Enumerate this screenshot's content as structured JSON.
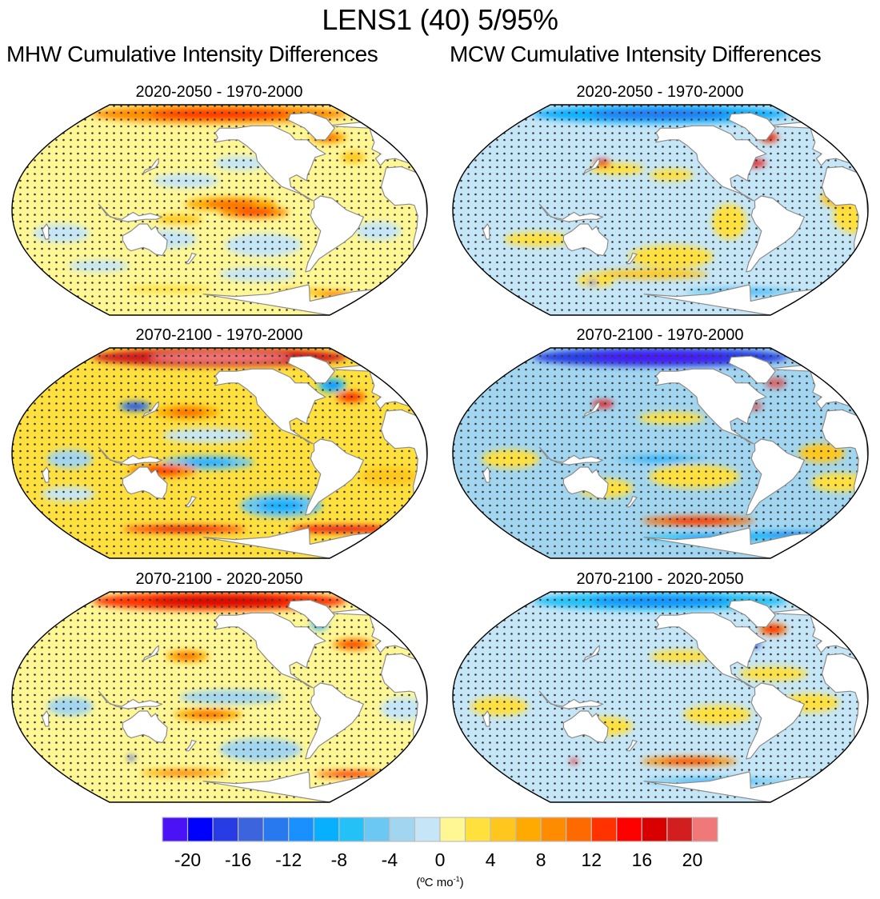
{
  "chart_data": [
    {
      "type": "heatmap",
      "title": "LENS1 (40) 5/95%",
      "column_titles": [
        "MHW Cumulative Intensity Differences",
        "MCW Cumulative Intensity Differences"
      ],
      "projection": "Robinson, Pacific-centered",
      "stippling": "dots mark significance",
      "panels": [
        {
          "id": "mhw-2020-2050-minus-1970-2000",
          "column": "MHW Cumulative Intensity Differences",
          "title": "2020-2050 - 1970-2000",
          "dominant_sign": "positive",
          "dominant_range": [
            0,
            4
          ],
          "notable": [
            "Arctic warm (4 to 12)",
            "equatorial east Pacific warm (4 to 8)",
            "Southern Ocean bands of slight negative (-4 to 0)"
          ]
        },
        {
          "id": "mcw-2020-2050-minus-1970-2000",
          "column": "MCW Cumulative Intensity Differences",
          "title": "2020-2050 - 1970-2000",
          "dominant_sign": "negative",
          "dominant_range": [
            -4,
            0
          ],
          "notable": [
            "Arctic cold (-12 to -4)",
            "Kuroshio and Gulf Stream warm spots (8 to 16)",
            "patchy positive bands (0 to 4)"
          ]
        },
        {
          "id": "mhw-2070-2100-minus-1970-2000",
          "column": "MHW Cumulative Intensity Differences",
          "title": "2070-2100 - 1970-2000",
          "dominant_sign": "positive",
          "dominant_range": [
            0,
            8
          ],
          "notable": [
            "Arctic strongly warm (16 to >20)",
            "Southern Ocean rim warm (8 to 16)",
            "South Pacific negative patch (-8 to -4)"
          ]
        },
        {
          "id": "mcw-2070-2100-minus-1970-2000",
          "column": "MCW Cumulative Intensity Differences",
          "title": "2070-2100 - 1970-2000",
          "dominant_sign": "negative",
          "dominant_range": [
            -6,
            0
          ],
          "notable": [
            "Arctic strongly cold (-20 to -12)",
            "Antarctic margin cold (-12 to -6)",
            "Southern Ocean warm band (4 to 12)"
          ]
        },
        {
          "id": "mhw-2070-2100-minus-2020-2050",
          "column": "MHW Cumulative Intensity Differences",
          "title": "2070-2100 - 2020-2050",
          "dominant_sign": "positive",
          "dominant_range": [
            0,
            4
          ],
          "notable": [
            "Arctic warm (8 to 16)",
            "south Pacific negative patch (-6 to -2)",
            "Southern Ocean rim warm (4 to 12)"
          ]
        },
        {
          "id": "mcw-2070-2100-minus-2020-2050",
          "column": "MCW Cumulative Intensity Differences",
          "title": "2070-2100 - 2020-2050",
          "dominant_sign": "negative",
          "dominant_range": [
            -4,
            0
          ],
          "notable": [
            "Arctic cold (-12 to -6)",
            "Labrador/North Atlantic mixed (-16 to 12)",
            "Southern Ocean warm band (4 to 10)"
          ]
        }
      ],
      "colorbar": {
        "levels": [
          -20,
          -18,
          -16,
          -14,
          -12,
          -10,
          -8,
          -6,
          -4,
          -2,
          0,
          2,
          4,
          6,
          8,
          10,
          12,
          14,
          16,
          18,
          20
        ],
        "tick_labels": [
          "-20",
          "-16",
          "-12",
          "-8",
          "-4",
          "0",
          "4",
          "8",
          "12",
          "16",
          "20"
        ],
        "tick_values": [
          -20,
          -16,
          -12,
          -8,
          -4,
          0,
          4,
          8,
          12,
          16,
          20
        ],
        "colors": [
          "#4a12f5",
          "#0000ff",
          "#283ce6",
          "#3c64dc",
          "#2878f0",
          "#1990ff",
          "#07b0ff",
          "#24c1f8",
          "#6bc8f2",
          "#a2d6f0",
          "#c5e6f7",
          "#fff794",
          "#ffe03c",
          "#ffc71e",
          "#ffaa00",
          "#ff8c00",
          "#ff6a00",
          "#ff3200",
          "#ff0000",
          "#d80000",
          "#d21e1e",
          "#f07878"
        ],
        "units": "(ºC mo-1)",
        "units_base": "(ºC mo",
        "units_sup": "-1",
        "units_close": ")"
      }
    }
  ],
  "header": {
    "title": "LENS1 (40) 5/95%",
    "left_column_title": "MHW Cumulative Intensity Differences",
    "right_column_title": "MCW Cumulative Intensity Differences"
  },
  "panels": [
    {
      "title": "2020-2050 - 1970-2000"
    },
    {
      "title": "2020-2050 - 1970-2000"
    },
    {
      "title": "2070-2100 - 1970-2000"
    },
    {
      "title": "2070-2100 - 1970-2000"
    },
    {
      "title": "2070-2100 - 2020-2050"
    },
    {
      "title": "2070-2100 - 2020-2050"
    }
  ],
  "palette": {
    "land": "#ffffff",
    "coast": "#8c8c8c",
    "outline": "#000000",
    "stipple": "#3a3a3a",
    "contour_green": "#3cb44b"
  }
}
